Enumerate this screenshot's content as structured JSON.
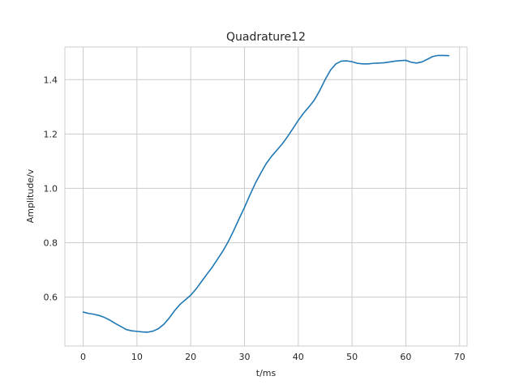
{
  "chart_data": {
    "type": "line",
    "title": "Quadrature12",
    "xlabel": "t/ms",
    "ylabel": "Amplitude/v",
    "xlim": [
      -3.4,
      71.4
    ],
    "ylim": [
      0.42,
      1.52
    ],
    "xticks": [
      0,
      10,
      20,
      30,
      40,
      50,
      60,
      70
    ],
    "yticks": [
      0.6,
      0.8,
      1.0,
      1.2,
      1.4
    ],
    "grid": true,
    "series": [
      {
        "color": "#1f77b4",
        "x": [
          0,
          1,
          2,
          3,
          4,
          5,
          6,
          7,
          8,
          9,
          10,
          11,
          12,
          13,
          14,
          15,
          16,
          17,
          18,
          19,
          20,
          21,
          22,
          23,
          24,
          25,
          26,
          27,
          28,
          29,
          30,
          31,
          32,
          33,
          34,
          35,
          36,
          37,
          38,
          39,
          40,
          41,
          42,
          43,
          44,
          45,
          46,
          47,
          48,
          49,
          50,
          51,
          52,
          53,
          54,
          55,
          56,
          57,
          58,
          59,
          60,
          61,
          62,
          63,
          64,
          65,
          66,
          67,
          68
        ],
        "y": [
          0.545,
          0.54,
          0.537,
          0.532,
          0.525,
          0.515,
          0.503,
          0.492,
          0.481,
          0.476,
          0.474,
          0.472,
          0.471,
          0.475,
          0.484,
          0.5,
          0.523,
          0.55,
          0.573,
          0.59,
          0.607,
          0.63,
          0.657,
          0.684,
          0.71,
          0.74,
          0.77,
          0.805,
          0.845,
          0.888,
          0.93,
          0.975,
          1.018,
          1.055,
          1.09,
          1.117,
          1.14,
          1.163,
          1.19,
          1.22,
          1.25,
          1.277,
          1.3,
          1.325,
          1.36,
          1.4,
          1.435,
          1.458,
          1.468,
          1.469,
          1.466,
          1.46,
          1.458,
          1.458,
          1.46,
          1.461,
          1.462,
          1.465,
          1.468,
          1.47,
          1.471,
          1.464,
          1.461,
          1.465,
          1.475,
          1.485,
          1.489,
          1.489,
          1.488
        ]
      }
    ]
  }
}
